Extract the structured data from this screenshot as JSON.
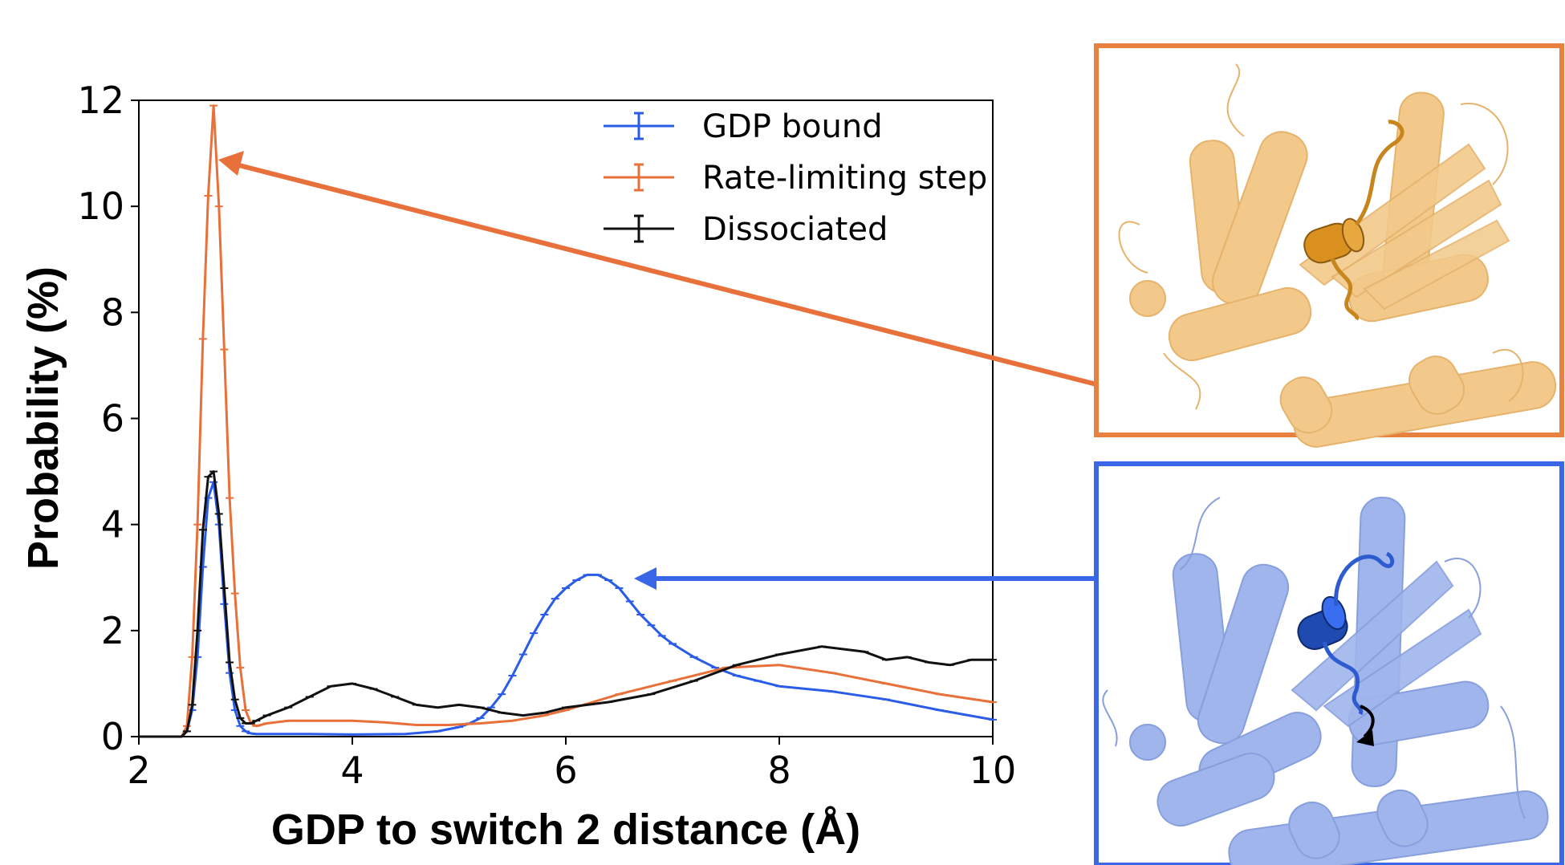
{
  "chart_data": {
    "type": "line",
    "xlabel": "GDP to switch 2 distance (Å)",
    "ylabel": "Probability (%)",
    "xlim": [
      2,
      10
    ],
    "ylim": [
      0,
      12
    ],
    "xticks": [
      "2",
      "4",
      "6",
      "8",
      "10"
    ],
    "yticks": [
      "0",
      "2",
      "4",
      "6",
      "8",
      "10",
      "12"
    ],
    "grid": false,
    "legend": "top-right",
    "error_bars": true,
    "series": [
      {
        "name": "GDP bound",
        "color": "#2a5ce8",
        "x": [
          2.0,
          2.4,
          2.45,
          2.5,
          2.55,
          2.6,
          2.65,
          2.7,
          2.75,
          2.8,
          2.85,
          2.9,
          2.95,
          3.0,
          3.05,
          3.1,
          3.2,
          3.4,
          3.6,
          4.0,
          4.5,
          4.8,
          5.0,
          5.1,
          5.2,
          5.3,
          5.4,
          5.5,
          5.6,
          5.7,
          5.8,
          5.9,
          6.0,
          6.1,
          6.2,
          6.3,
          6.4,
          6.5,
          6.6,
          6.7,
          6.8,
          6.9,
          7.0,
          7.2,
          7.4,
          7.6,
          7.8,
          8.0,
          8.5,
          9.0,
          9.5,
          10.0
        ],
        "y": [
          0.0,
          0.0,
          0.1,
          0.5,
          1.5,
          3.2,
          4.5,
          4.8,
          4.0,
          2.5,
          1.2,
          0.5,
          0.2,
          0.1,
          0.06,
          0.05,
          0.05,
          0.05,
          0.05,
          0.04,
          0.05,
          0.1,
          0.18,
          0.25,
          0.35,
          0.55,
          0.8,
          1.15,
          1.55,
          1.95,
          2.3,
          2.6,
          2.8,
          2.95,
          3.05,
          3.05,
          2.95,
          2.8,
          2.55,
          2.3,
          2.1,
          1.9,
          1.75,
          1.5,
          1.3,
          1.15,
          1.05,
          0.95,
          0.85,
          0.7,
          0.5,
          0.32
        ]
      },
      {
        "name": "Rate-limiting step",
        "color": "#e8703a",
        "x": [
          2.0,
          2.4,
          2.45,
          2.5,
          2.55,
          2.6,
          2.65,
          2.7,
          2.75,
          2.8,
          2.85,
          2.9,
          2.95,
          3.0,
          3.05,
          3.1,
          3.2,
          3.4,
          3.7,
          4.0,
          4.3,
          4.6,
          4.9,
          5.2,
          5.5,
          5.8,
          6.0,
          6.5,
          7.0,
          7.5,
          8.0,
          8.5,
          9.0,
          9.5,
          10.0
        ],
        "y": [
          0.0,
          0.0,
          0.2,
          1.5,
          4.0,
          7.5,
          10.2,
          11.9,
          10.0,
          7.3,
          4.5,
          2.7,
          1.3,
          0.5,
          0.25,
          0.2,
          0.25,
          0.3,
          0.3,
          0.3,
          0.27,
          0.22,
          0.22,
          0.25,
          0.3,
          0.4,
          0.5,
          0.8,
          1.05,
          1.3,
          1.35,
          1.2,
          1.0,
          0.8,
          0.65
        ]
      },
      {
        "name": "Dissociated",
        "color": "#111111",
        "x": [
          2.0,
          2.4,
          2.45,
          2.5,
          2.55,
          2.6,
          2.65,
          2.7,
          2.75,
          2.8,
          2.85,
          2.9,
          2.95,
          3.0,
          3.05,
          3.1,
          3.2,
          3.4,
          3.6,
          3.8,
          4.0,
          4.2,
          4.4,
          4.6,
          4.8,
          5.0,
          5.2,
          5.4,
          5.6,
          5.8,
          6.0,
          6.4,
          6.8,
          7.2,
          7.6,
          8.0,
          8.4,
          8.6,
          8.8,
          9.0,
          9.2,
          9.4,
          9.6,
          9.8,
          10.0
        ],
        "y": [
          0.0,
          0.0,
          0.1,
          0.6,
          2.0,
          3.9,
          4.9,
          5.0,
          4.2,
          2.8,
          1.4,
          0.7,
          0.35,
          0.25,
          0.25,
          0.3,
          0.4,
          0.55,
          0.75,
          0.95,
          1.0,
          0.9,
          0.75,
          0.6,
          0.55,
          0.6,
          0.55,
          0.45,
          0.4,
          0.45,
          0.55,
          0.65,
          0.8,
          1.05,
          1.35,
          1.55,
          1.7,
          1.65,
          1.6,
          1.45,
          1.5,
          1.4,
          1.35,
          1.45,
          1.45
        ]
      }
    ]
  },
  "colors": {
    "blue": "#2a5ce8",
    "orange": "#e8703a",
    "black": "#111111"
  },
  "panels": {
    "rate_limiting": {
      "frame_color": "#e8803f",
      "protein_color": "#f2c98a",
      "highlight_color": "#d9901f"
    },
    "gdp_bound": {
      "frame_color": "#3a66e8",
      "protein_color": "#9fb5ec",
      "highlight_color": "#1f4ab0"
    }
  }
}
